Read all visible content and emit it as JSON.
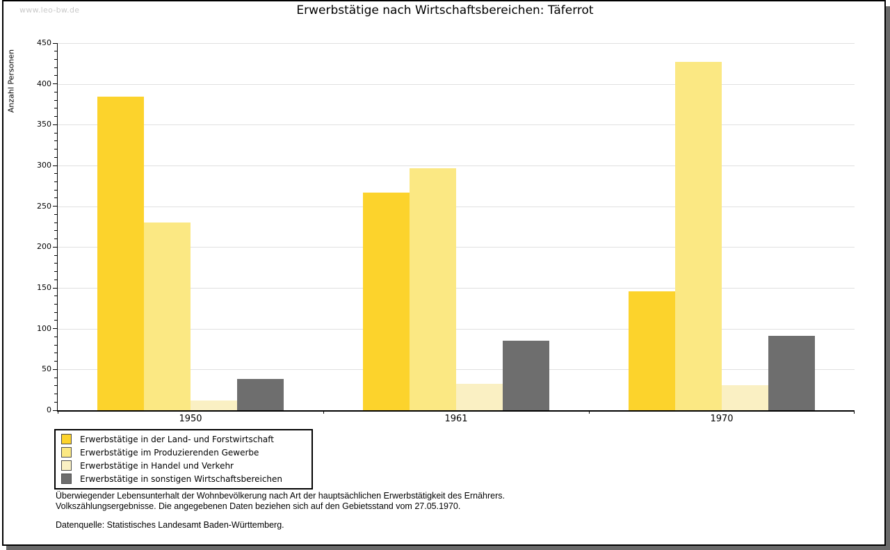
{
  "watermark": "www.leo-bw.de",
  "title": "Erwerbstätige nach Wirtschaftsbereichen: Täferrot",
  "colors": {
    "grid": "#e0e0e0",
    "axis": "#000000",
    "frame_shadow": "#696969",
    "watermark": "#c9c9c9"
  },
  "chart_data": {
    "type": "bar",
    "title": "Erwerbstätige nach Wirtschaftsbereichen: Täferrot",
    "xlabel": "",
    "ylabel": "Anzahl Personen",
    "ylim": [
      0,
      450
    ],
    "ytick_step": 50,
    "yminor_step": 10,
    "grid": true,
    "legend_position": "bottom-left",
    "categories": [
      "1950",
      "1961",
      "1970"
    ],
    "series": [
      {
        "name": "Erwerbstätige in der Land- und Forstwirtschaft",
        "color": "#fcd32c",
        "values": [
          384,
          267,
          146
        ]
      },
      {
        "name": "Erwerbstätige im Produzierenden Gewerbe",
        "color": "#fbe883",
        "values": [
          230,
          297,
          427
        ]
      },
      {
        "name": "Erwerbstätige in Handel und Verkehr",
        "color": "#faf0c3",
        "values": [
          12,
          32,
          31
        ]
      },
      {
        "name": "Erwerbstätige in sonstigen Wirtschaftsbereichen",
        "color": "#6e6e6e",
        "values": [
          38,
          85,
          91
        ]
      }
    ]
  },
  "footer": {
    "note_line1": "Überwiegender Lebensunterhalt der Wohnbevölkerung nach Art der hauptsächlichen Erwerbstätigkeit des Ernährers.",
    "note_line2": "Volkszählungsergebnisse. Die angegebenen Daten beziehen sich auf den Gebietsstand vom 27.05.1970.",
    "source": "Datenquelle: Statistisches Landesamt Baden-Württemberg."
  }
}
